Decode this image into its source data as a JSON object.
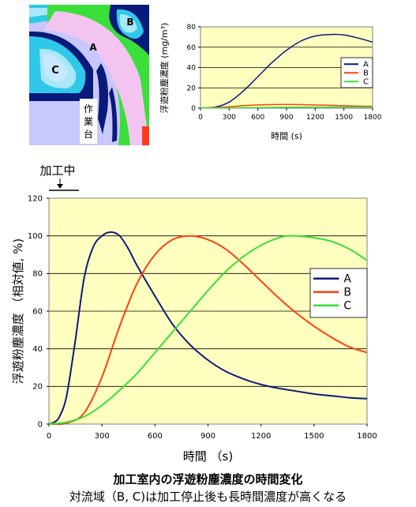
{
  "floor_map": {
    "zone_labels": [
      "A",
      "B",
      "C"
    ],
    "workbench_label": [
      "作",
      "業",
      "台"
    ],
    "colors": {
      "pink": "#f3c4f0",
      "lavender": "#c8c8ff",
      "green": "#3adf3a",
      "cyan": "#30c8e8",
      "navy": "#0a1a7a",
      "light_blue": "#a8e8f8",
      "pale_blue": "#c8e8ff",
      "red": "#ff3a1a"
    }
  },
  "processing_marker": {
    "label": "加工中",
    "arrow": "↓"
  },
  "captions": {
    "title": "加工室内の浮遊粉塵濃度の時間変化",
    "subtitle": "対流域（B, C)は加工停止後も長時間濃度が高くなる"
  },
  "chart_data": [
    {
      "id": "absolute",
      "type": "line",
      "xlabel": "時間 (s)",
      "ylabel": "浮遊粉塵濃度 (mg/m³)",
      "xlim": [
        0,
        1800
      ],
      "ylim": [
        0,
        80
      ],
      "xticks": [
        0,
        300,
        600,
        900,
        1200,
        1500,
        1800
      ],
      "yticks": [
        0,
        20,
        40,
        60,
        80
      ],
      "grid": true,
      "legend": "right",
      "series": [
        {
          "name": "A",
          "color": "#0a1a7a",
          "x": [
            0,
            150,
            300,
            450,
            600,
            750,
            900,
            1050,
            1200,
            1350,
            1500,
            1650,
            1800
          ],
          "y": [
            0.3,
            1,
            6,
            17,
            31,
            45,
            57,
            66,
            71,
            72.5,
            72,
            69,
            65
          ]
        },
        {
          "name": "B",
          "color": "#ff4010",
          "x": [
            0,
            150,
            300,
            450,
            600,
            750,
            900,
            1050,
            1200,
            1350,
            1500,
            1650,
            1800
          ],
          "y": [
            0.2,
            0.6,
            1.4,
            2.5,
            3.2,
            3.6,
            3.7,
            3.5,
            3.2,
            2.8,
            2.4,
            2,
            1.7
          ]
        },
        {
          "name": "C",
          "color": "#3adf3a",
          "x": [
            0,
            300,
            600,
            900,
            1200,
            1500,
            1800
          ],
          "y": [
            0.1,
            0.3,
            0.6,
            0.9,
            1.1,
            1.1,
            1
          ]
        }
      ]
    },
    {
      "id": "relative",
      "type": "line",
      "xlabel": "時間 （s)",
      "ylabel": "浮遊粉塵濃度 （相対値, %)",
      "xlim": [
        0,
        1800
      ],
      "ylim": [
        0,
        120
      ],
      "xticks": [
        0,
        300,
        600,
        900,
        1200,
        1500,
        1800
      ],
      "yticks": [
        0,
        20,
        40,
        60,
        80,
        100,
        120
      ],
      "grid": true,
      "legend": "right",
      "series": [
        {
          "name": "A",
          "color": "#0a1a7a",
          "x": [
            0,
            30,
            60,
            100,
            150,
            200,
            250,
            300,
            350,
            400,
            450,
            500,
            600,
            700,
            800,
            900,
            1000,
            1100,
            1200,
            1300,
            1400,
            1500,
            1600,
            1700,
            1800
          ],
          "y": [
            0,
            1,
            4,
            15,
            45,
            78,
            94,
            100,
            102,
            100,
            93,
            84,
            68,
            53,
            42,
            34,
            28,
            24,
            21,
            19,
            17.5,
            16,
            15,
            14,
            13.5
          ]
        },
        {
          "name": "B",
          "color": "#ff4010",
          "x": [
            0,
            100,
            200,
            300,
            400,
            500,
            600,
            700,
            800,
            900,
            1000,
            1100,
            1200,
            1300,
            1400,
            1500,
            1600,
            1700,
            1800
          ],
          "y": [
            0,
            0.5,
            6,
            25,
            52,
            75,
            90,
            98,
            100,
            98,
            93,
            85,
            76,
            67,
            59,
            52,
            46,
            41,
            38
          ]
        },
        {
          "name": "C",
          "color": "#3adf3a",
          "x": [
            0,
            100,
            200,
            300,
            400,
            500,
            600,
            700,
            800,
            900,
            1000,
            1100,
            1200,
            1300,
            1350,
            1400,
            1500,
            1600,
            1700,
            1800
          ],
          "y": [
            0,
            1,
            4,
            10,
            18,
            27,
            38,
            49,
            60,
            71,
            81,
            89,
            95,
            99,
            100,
            100,
            99,
            97,
            93,
            87
          ]
        }
      ]
    }
  ]
}
